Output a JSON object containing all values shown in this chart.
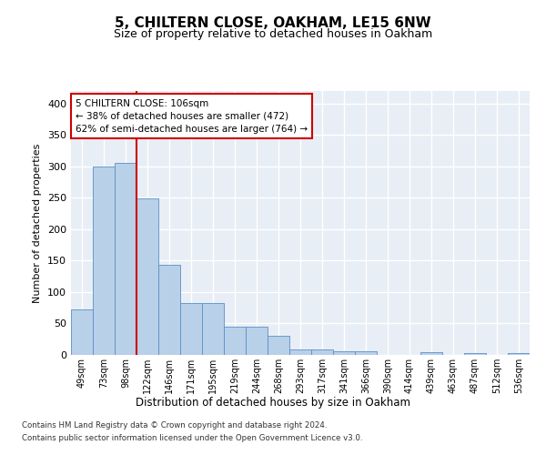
{
  "title": "5, CHILTERN CLOSE, OAKHAM, LE15 6NW",
  "subtitle": "Size of property relative to detached houses in Oakham",
  "xlabel": "Distribution of detached houses by size in Oakham",
  "ylabel": "Number of detached properties",
  "categories": [
    "49sqm",
    "73sqm",
    "98sqm",
    "122sqm",
    "146sqm",
    "171sqm",
    "195sqm",
    "219sqm",
    "244sqm",
    "268sqm",
    "293sqm",
    "317sqm",
    "341sqm",
    "366sqm",
    "390sqm",
    "414sqm",
    "439sqm",
    "463sqm",
    "487sqm",
    "512sqm",
    "536sqm"
  ],
  "values": [
    72,
    300,
    305,
    249,
    144,
    83,
    83,
    45,
    45,
    31,
    8,
    8,
    6,
    6,
    0,
    0,
    4,
    0,
    3,
    0,
    3
  ],
  "bar_color": "#b8d0e8",
  "bar_edge_color": "#5b8fc9",
  "background_color": "#e8eef5",
  "grid_color": "#ffffff",
  "property_line_x": 2.5,
  "annotation_text": "5 CHILTERN CLOSE: 106sqm\n← 38% of detached houses are smaller (472)\n62% of semi-detached houses are larger (764) →",
  "annotation_box_color": "#ffffff",
  "annotation_box_edge": "#cc0000",
  "property_line_color": "#cc0000",
  "footer_line1": "Contains HM Land Registry data © Crown copyright and database right 2024.",
  "footer_line2": "Contains public sector information licensed under the Open Government Licence v3.0.",
  "ylim": [
    0,
    420
  ],
  "yticks": [
    0,
    50,
    100,
    150,
    200,
    250,
    300,
    350,
    400
  ]
}
